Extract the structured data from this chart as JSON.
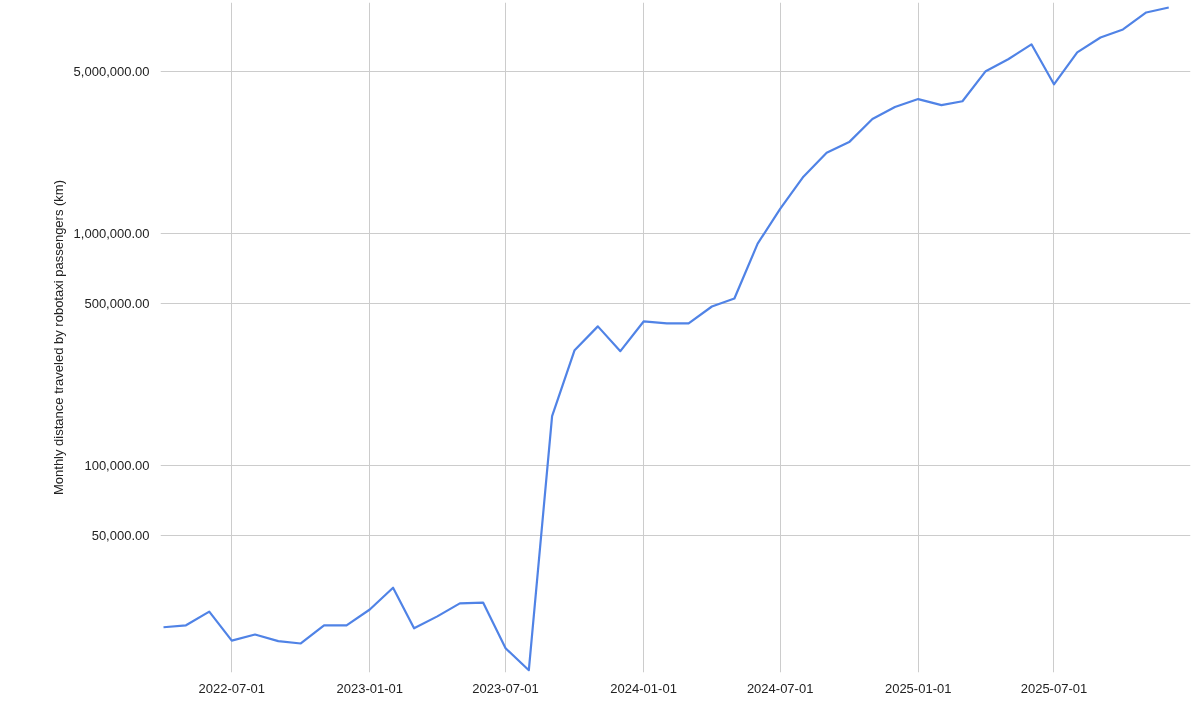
{
  "chart_data": {
    "type": "line",
    "ylabel": "Monthly distance traveled by robotaxi passengers (km)",
    "x": [
      "2022-04-01",
      "2022-05-01",
      "2022-06-01",
      "2022-07-01",
      "2022-08-01",
      "2022-09-01",
      "2022-10-01",
      "2022-11-01",
      "2022-12-01",
      "2023-01-01",
      "2023-02-01",
      "2023-03-01",
      "2023-04-01",
      "2023-05-01",
      "2023-06-01",
      "2023-07-01",
      "2023-08-01",
      "2023-09-01",
      "2023-10-01",
      "2023-11-01",
      "2023-12-01",
      "2024-01-01",
      "2024-02-01",
      "2024-03-01",
      "2024-04-01",
      "2024-05-01",
      "2024-06-01",
      "2024-07-01",
      "2024-08-01",
      "2024-09-01",
      "2024-10-01",
      "2024-11-01",
      "2024-12-01",
      "2025-01-01",
      "2025-02-01",
      "2025-03-01",
      "2025-04-01",
      "2025-05-01",
      "2025-06-01",
      "2025-07-01",
      "2025-08-01",
      "2025-09-01",
      "2025-10-01",
      "2025-11-01",
      "2025-12-01"
    ],
    "series": [
      {
        "color": "#5083e6",
        "values": [
          20200,
          20600,
          23600,
          17700,
          18800,
          17600,
          17200,
          20600,
          20600,
          24100,
          29900,
          20000,
          22500,
          25600,
          25800,
          16400,
          13200,
          164000,
          315000,
          399000,
          312000,
          419000,
          411000,
          411000,
          486000,
          526000,
          906000,
          1280000,
          1760000,
          2230000,
          2480000,
          3120000,
          3510000,
          3800000,
          3580000,
          3720000,
          5010000,
          5640000,
          6540000,
          4400000,
          6040000,
          7000000,
          7580000,
          8970000,
          9420000
        ]
      }
    ],
    "log": "y",
    "grid": true,
    "line_style": "solid",
    "marker": "none",
    "xlim": [
      "2022-03-28",
      "2025-12-30"
    ],
    "ylim": [
      12900,
      9900000
    ],
    "xticks": [
      "2022-07-01",
      "2023-01-01",
      "2023-07-01",
      "2024-01-01",
      "2024-07-01",
      "2025-01-01",
      "2025-07-01"
    ],
    "yticks": [
      {
        "value": 50000,
        "label": "50,000.00"
      },
      {
        "value": 100000,
        "label": "100,000.00"
      },
      {
        "value": 500000,
        "label": "500,000.00"
      },
      {
        "value": 1000000,
        "label": "1,000,000.00"
      },
      {
        "value": 5000000,
        "label": "5,000,000.00"
      }
    ]
  }
}
